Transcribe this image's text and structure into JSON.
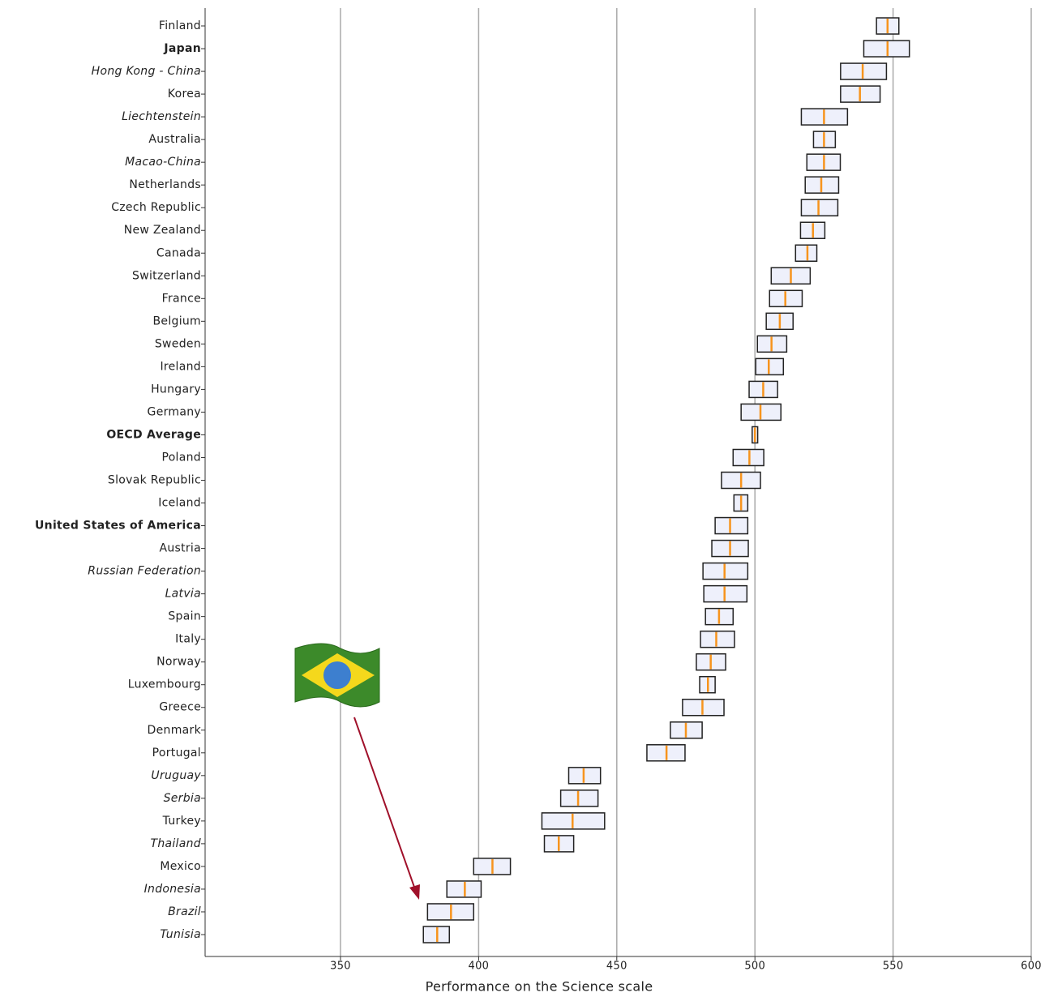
{
  "chart_data": {
    "type": "interval",
    "x_label": "Performance on the Science scale",
    "categories": [
      "Finland",
      "Japan",
      "Hong Kong - China",
      "Korea",
      "Liechtenstein",
      "Australia",
      "Macao-China",
      "Netherlands",
      "Czech Republic",
      "New Zealand",
      "Canada",
      "Switzerland",
      "France",
      "Belgium",
      "Sweden",
      "Ireland",
      "Hungary",
      "Germany",
      "OECD Average",
      "Poland",
      "Slovak Republic",
      "Iceland",
      "United States of America",
      "Austria",
      "Russian Federation",
      "Latvia",
      "Spain",
      "Italy",
      "Norway",
      "Luxembourg",
      "Greece",
      "Denmark",
      "Portugal",
      "Uruguay",
      "Serbia",
      "Turkey",
      "Thailand",
      "Mexico",
      "Indonesia",
      "Brazil",
      "Tunisia"
    ],
    "label_styles": [
      "normal",
      "bold",
      "italic",
      "normal",
      "italic",
      "normal",
      "italic",
      "normal",
      "normal",
      "normal",
      "normal",
      "normal",
      "normal",
      "normal",
      "normal",
      "normal",
      "normal",
      "normal",
      "bold",
      "normal",
      "normal",
      "normal",
      "bold",
      "normal",
      "italic",
      "italic",
      "normal",
      "normal",
      "normal",
      "normal",
      "normal",
      "normal",
      "normal",
      "italic",
      "italic",
      "normal",
      "italic",
      "normal",
      "italic",
      "italic",
      "italic"
    ],
    "values": [
      548,
      548,
      539,
      538,
      525,
      525,
      525,
      524,
      523,
      521,
      519,
      513,
      511,
      509,
      506,
      505,
      503,
      502,
      500,
      498,
      495,
      495,
      491,
      491,
      489,
      489,
      487,
      486,
      484,
      483,
      481,
      475,
      468,
      438,
      436,
      434,
      429,
      405,
      395,
      390,
      385
    ],
    "lower": [
      544,
      539.4,
      531,
      531,
      516.8,
      521.2,
      518.8,
      518.2,
      516.8,
      516.5,
      514.7,
      505.9,
      505.3,
      504.1,
      500.9,
      500.3,
      497.9,
      495,
      499,
      492.1,
      487.9,
      492.4,
      485.6,
      484.4,
      481.2,
      481.5,
      482.1,
      480.3,
      478.8,
      480,
      473.8,
      469.4,
      460.9,
      432.6,
      429.7,
      422.9,
      423.8,
      398.2,
      388.5,
      381.5,
      380
    ],
    "upper": [
      552.1,
      555.9,
      547.6,
      545.3,
      533.5,
      529.1,
      530.9,
      530.3,
      530,
      525.3,
      522.4,
      520,
      517.1,
      513.8,
      511.5,
      510.3,
      508.2,
      509.4,
      501,
      503.2,
      502,
      497.4,
      497.4,
      497.6,
      497.4,
      497.1,
      492.1,
      492.6,
      489.4,
      485.6,
      488.8,
      480.9,
      474.7,
      444.1,
      443.2,
      445.6,
      434.4,
      411.5,
      400.9,
      398.2,
      389.4
    ],
    "box_color": "#eef0fb",
    "mean_color": "#f7941d",
    "xlim": [
      301,
      600
    ],
    "xticks": [
      350,
      400,
      450,
      500,
      550,
      600
    ],
    "grid": true
  }
}
